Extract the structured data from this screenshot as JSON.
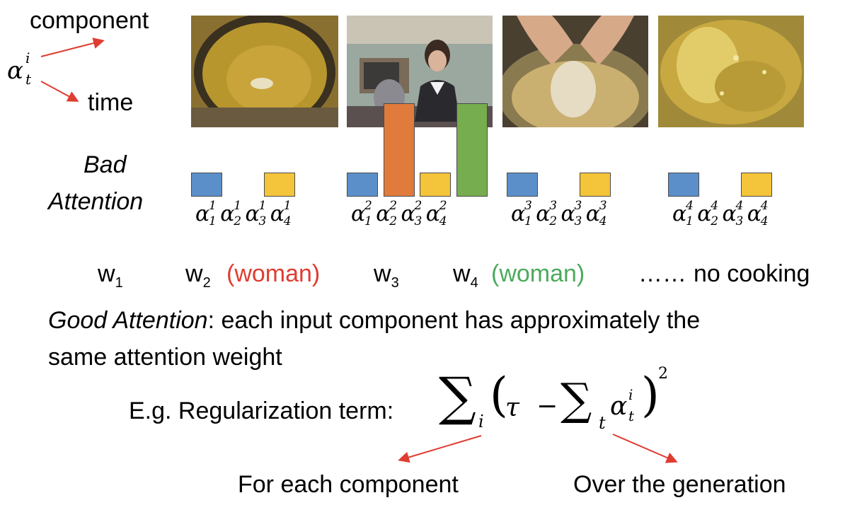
{
  "notation": {
    "symbol": "α",
    "superscript": "i",
    "subscript": "t",
    "top_label": "component",
    "bottom_label": "time"
  },
  "frames": [
    {
      "scene": "pot-of-oil"
    },
    {
      "scene": "woman-in-kitchen"
    },
    {
      "scene": "hands-in-pot"
    },
    {
      "scene": "frying-close-up"
    }
  ],
  "bad_attention": {
    "label_line1": "Bad",
    "label_line2": "Attention",
    "groups": [
      {
        "t": "1",
        "weights": [
          0.17,
          0,
          0.17,
          0
        ]
      },
      {
        "t": "2",
        "weights": [
          0.17,
          0.66,
          0.17,
          0.66
        ]
      },
      {
        "t": "3",
        "weights": [
          0.17,
          0,
          0.17,
          0
        ]
      },
      {
        "t": "4",
        "weights": [
          0.17,
          0,
          0.17,
          0
        ]
      }
    ],
    "component_indices": [
      "1",
      "2",
      "3",
      "4"
    ],
    "colors": [
      "#5b8fc9",
      "#e07b3c",
      "#f4c43a",
      "#76ad4e"
    ]
  },
  "words": {
    "w1": "w",
    "w1_sub": "1",
    "w2": "w",
    "w2_sub": "2",
    "w2_note": "(woman)",
    "w2_color": "#e03c31",
    "w3": "w",
    "w3_sub": "3",
    "w4": "w",
    "w4_sub": "4",
    "w4_note": "(woman)",
    "w4_color": "#4caa5c",
    "ellipsis": "……",
    "tail": "no cooking"
  },
  "good_attention": {
    "term": "Good Attention",
    "rest_line1": ": each input component has approximately the",
    "line2": "same attention weight"
  },
  "regularization": {
    "label": "E.g. Regularization term:",
    "sum_symbol": "∑",
    "outer_index": "i",
    "tau": "τ",
    "minus": "−",
    "inner_index": "t",
    "alpha": "α",
    "alpha_sup": "i",
    "alpha_sub": "t",
    "exponent": "2"
  },
  "annotations": {
    "left": "For each component",
    "right": "Over the generation",
    "arrow_color": "#e03c31"
  }
}
